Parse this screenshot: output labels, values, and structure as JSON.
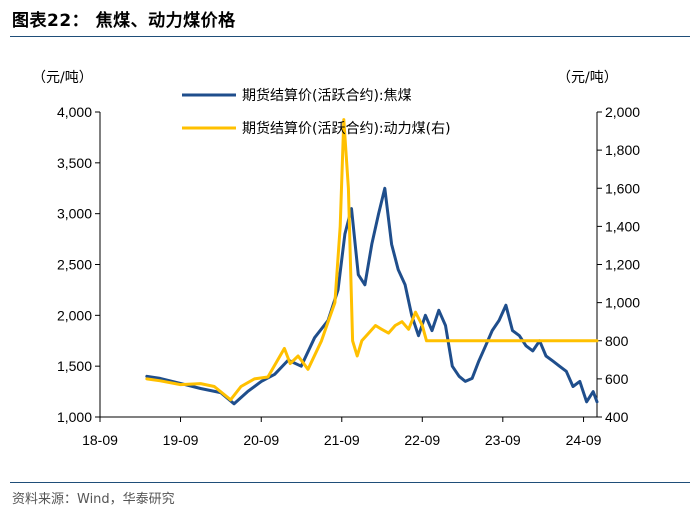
{
  "header": {
    "title": "图表22：  焦煤、动力煤价格"
  },
  "footer": {
    "source": "资料来源：Wind，华泰研究"
  },
  "colors": {
    "coking_coal": "#1f4e8c",
    "thermal_coal": "#ffc000",
    "rule": "#1f4e79"
  },
  "chart_data": {
    "type": "line",
    "title": "",
    "x_ticks": [
      "18-09",
      "19-09",
      "20-09",
      "21-09",
      "22-09",
      "23-09",
      "24-09"
    ],
    "x_range": [
      "2018-09",
      "2024-11"
    ],
    "y_left": {
      "unit": "（元/吨）",
      "ylim": [
        1000,
        4000
      ],
      "ticks": [
        "1,000",
        "1,500",
        "2,000",
        "2,500",
        "3,000",
        "3,500",
        "4,000"
      ]
    },
    "y_right": {
      "unit": "（元/吨）",
      "ylim": [
        400,
        2000
      ],
      "ticks": [
        "400",
        "600",
        "800",
        "1,000",
        "1,200",
        "1,400",
        "1,600",
        "1,800",
        "2,000"
      ]
    },
    "grid": false,
    "legend_position": "top-center",
    "series": [
      {
        "name": "期货结算价(活跃合约):焦煤",
        "axis": "left",
        "x": [
          "2019-04-01",
          "2019-06-01",
          "2019-09-01",
          "2019-12-01",
          "2020-03-01",
          "2020-05-01",
          "2020-07-01",
          "2020-09-01",
          "2020-11-01",
          "2021-01-01",
          "2021-03-01",
          "2021-05-01",
          "2021-07-01",
          "2021-08-15",
          "2021-09-15",
          "2021-10-15",
          "2021-11-15",
          "2021-12-15",
          "2022-01-15",
          "2022-02-15",
          "2022-03-15",
          "2022-04-15",
          "2022-05-15",
          "2022-06-15",
          "2022-07-15",
          "2022-08-15",
          "2022-09-15",
          "2022-10-15",
          "2022-11-15",
          "2022-12-15",
          "2023-01-15",
          "2023-02-15",
          "2023-03-15",
          "2023-04-15",
          "2023-05-15",
          "2023-06-15",
          "2023-07-15",
          "2023-08-15",
          "2023-09-15",
          "2023-10-15",
          "2023-11-15",
          "2023-12-15",
          "2024-01-15",
          "2024-02-15",
          "2024-03-15",
          "2024-04-15",
          "2024-05-15",
          "2024-06-15",
          "2024-07-15",
          "2024-08-15",
          "2024-09-15",
          "2024-10-15",
          "2024-11-01"
        ],
        "values": [
          1400,
          1380,
          1330,
          1280,
          1240,
          1130,
          1250,
          1350,
          1420,
          1560,
          1500,
          1780,
          1950,
          2250,
          2800,
          3050,
          2400,
          2300,
          2700,
          3000,
          3250,
          2700,
          2450,
          2300,
          2000,
          1800,
          2000,
          1850,
          2050,
          1900,
          1500,
          1400,
          1350,
          1380,
          1550,
          1700,
          1850,
          1950,
          2100,
          1850,
          1800,
          1700,
          1650,
          1750,
          1600,
          1550,
          1500,
          1450,
          1300,
          1350,
          1150,
          1250,
          1150
        ]
      },
      {
        "name": "期货结算价(活跃合约):动力煤(右)",
        "axis": "right",
        "x": [
          "2019-04-01",
          "2019-06-01",
          "2019-09-01",
          "2019-12-01",
          "2020-02-01",
          "2020-04-15",
          "2020-06-01",
          "2020-08-01",
          "2020-10-01",
          "2020-12-15",
          "2021-01-10",
          "2021-02-15",
          "2021-04-01",
          "2021-06-01",
          "2021-07-01",
          "2021-08-01",
          "2021-08-25",
          "2021-09-10",
          "2021-10-01",
          "2021-10-20",
          "2021-11-10",
          "2021-12-01",
          "2022-01-01",
          "2022-02-01",
          "2022-03-01",
          "2022-04-01",
          "2022-05-01",
          "2022-06-01",
          "2022-07-01",
          "2022-08-01",
          "2022-09-01",
          "2022-09-20",
          "2022-10-01",
          "2023-06-01",
          "2024-11-01"
        ],
        "values": [
          600,
          590,
          570,
          575,
          560,
          490,
          560,
          600,
          610,
          760,
          680,
          720,
          650,
          800,
          900,
          1000,
          1400,
          1960,
          1600,
          800,
          720,
          800,
          840,
          880,
          860,
          840,
          880,
          900,
          860,
          950,
          880,
          800,
          800,
          800,
          800
        ]
      }
    ]
  }
}
